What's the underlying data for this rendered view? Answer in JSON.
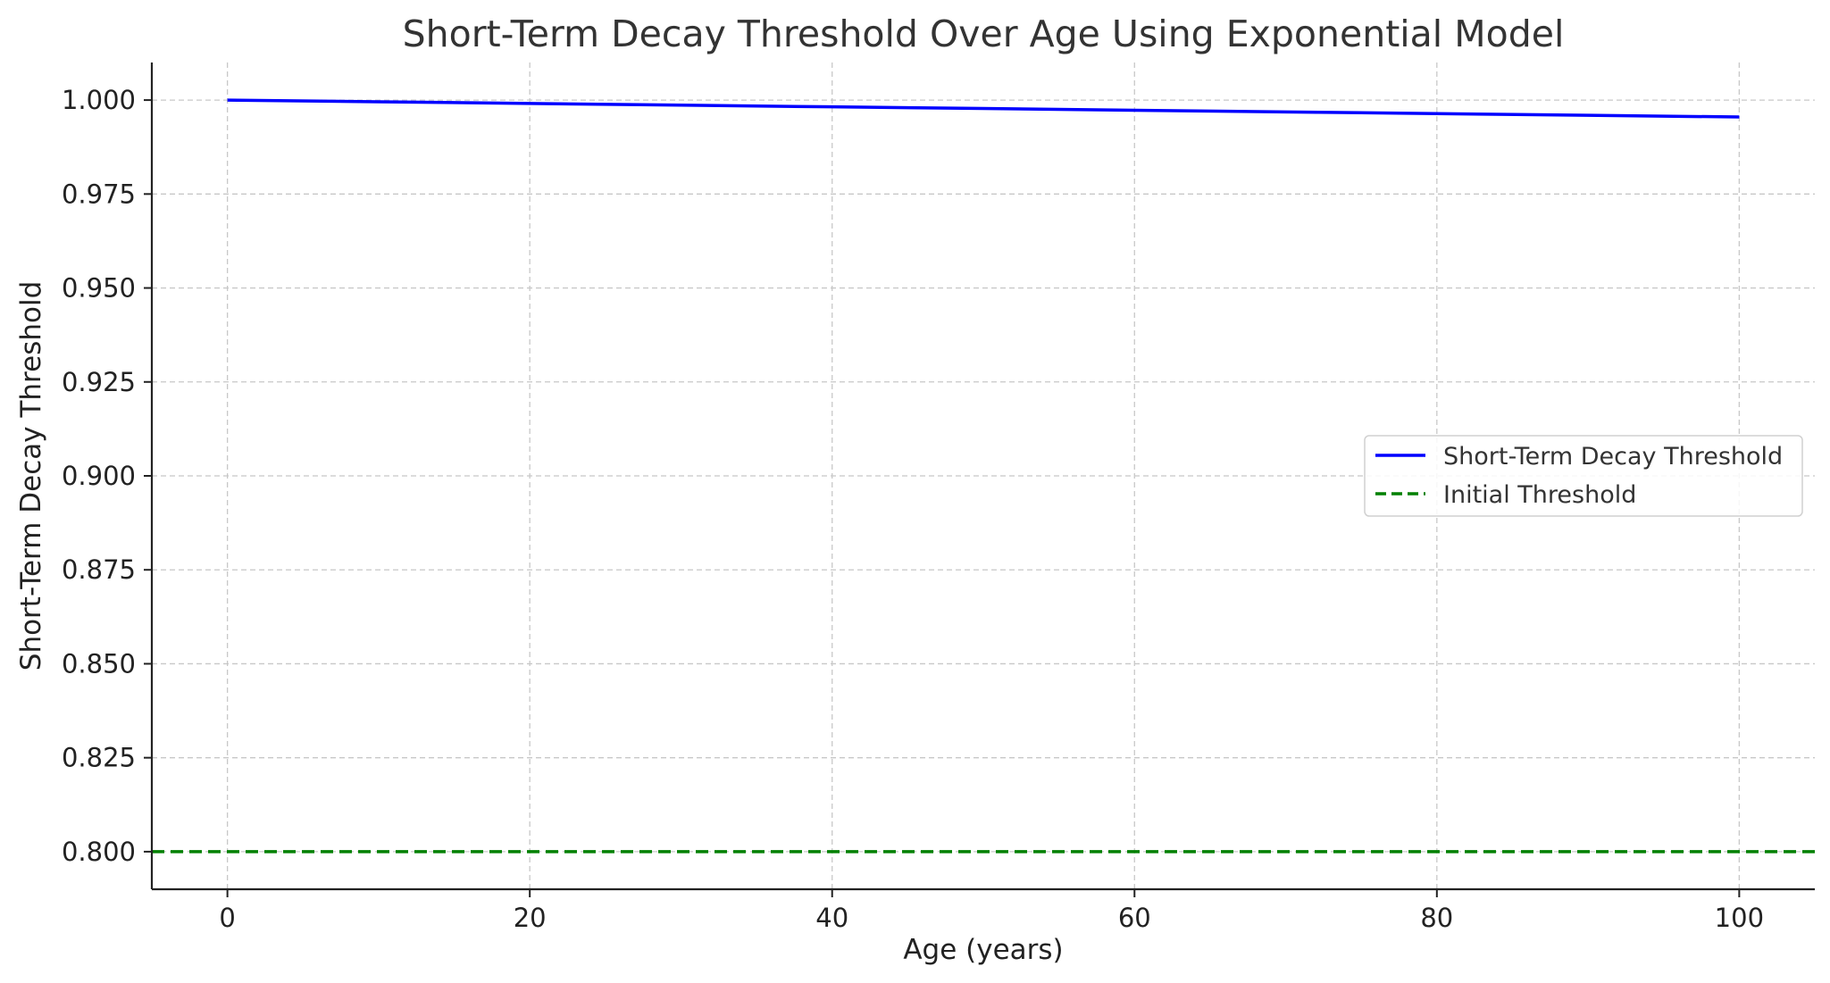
{
  "chart_data": {
    "type": "line",
    "title": "Short-Term Decay Threshold Over Age Using Exponential Model",
    "xlabel": "Age (years)",
    "ylabel": "Short-Term Decay Threshold",
    "xlim": [
      -5,
      105
    ],
    "ylim": [
      0.79,
      1.01
    ],
    "xticks": [
      0,
      20,
      40,
      60,
      80,
      100
    ],
    "xtick_labels": [
      "0",
      "20",
      "40",
      "60",
      "80",
      "100"
    ],
    "yticks": [
      0.8,
      0.825,
      0.85,
      0.875,
      0.9,
      0.925,
      0.95,
      0.975,
      1.0
    ],
    "ytick_labels": [
      "0.800",
      "0.825",
      "0.850",
      "0.875",
      "0.900",
      "0.925",
      "0.950",
      "0.975",
      "1.000"
    ],
    "grid": true,
    "legend_position": "center-right",
    "series": [
      {
        "name": "Short-Term Decay Threshold",
        "color": "#0000ff",
        "style": "solid",
        "x": [
          0,
          10,
          20,
          30,
          40,
          50,
          60,
          70,
          80,
          90,
          100
        ],
        "y": [
          1.0,
          0.99955,
          0.9991,
          0.99865,
          0.9982,
          0.99775,
          0.9973,
          0.99685,
          0.9964,
          0.99595,
          0.9955
        ]
      },
      {
        "name": "Initial Threshold",
        "color": "#008000",
        "style": "dashed",
        "horizontal_line": true,
        "y_value": 0.8
      }
    ]
  }
}
